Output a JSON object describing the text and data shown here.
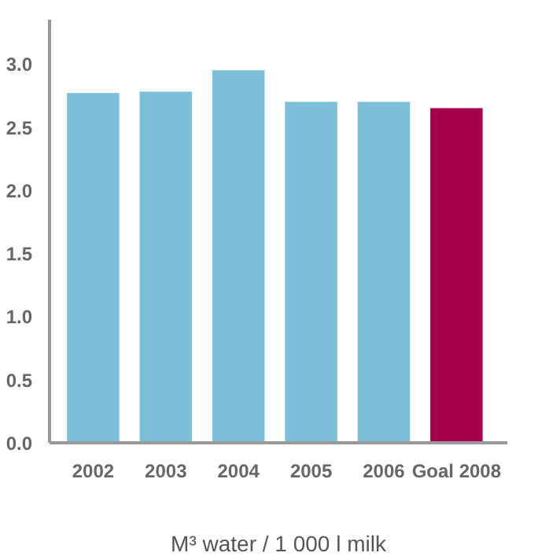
{
  "chart_data": {
    "type": "bar",
    "xlabel": "M³ water / 1 000 l milk",
    "categories": [
      "2002",
      "2003",
      "2004",
      "2005",
      "2006",
      "Goal 2008"
    ],
    "values": [
      2.77,
      2.78,
      2.95,
      2.7,
      2.7,
      2.65
    ],
    "colors": [
      "#7bbfd9",
      "#7bbfd9",
      "#7bbfd9",
      "#7bbfd9",
      "#7bbfd9",
      "#a6004c"
    ],
    "ylim": [
      0,
      3.35
    ],
    "yticks": [
      {
        "value": 0,
        "label": "0.0"
      },
      0.5,
      {
        "value": 1,
        "label": "1.0"
      },
      1.5,
      {
        "value": 2,
        "label": "2.0"
      },
      2.5,
      {
        "value": 3,
        "label": "3.0"
      }
    ],
    "grid": false
  }
}
